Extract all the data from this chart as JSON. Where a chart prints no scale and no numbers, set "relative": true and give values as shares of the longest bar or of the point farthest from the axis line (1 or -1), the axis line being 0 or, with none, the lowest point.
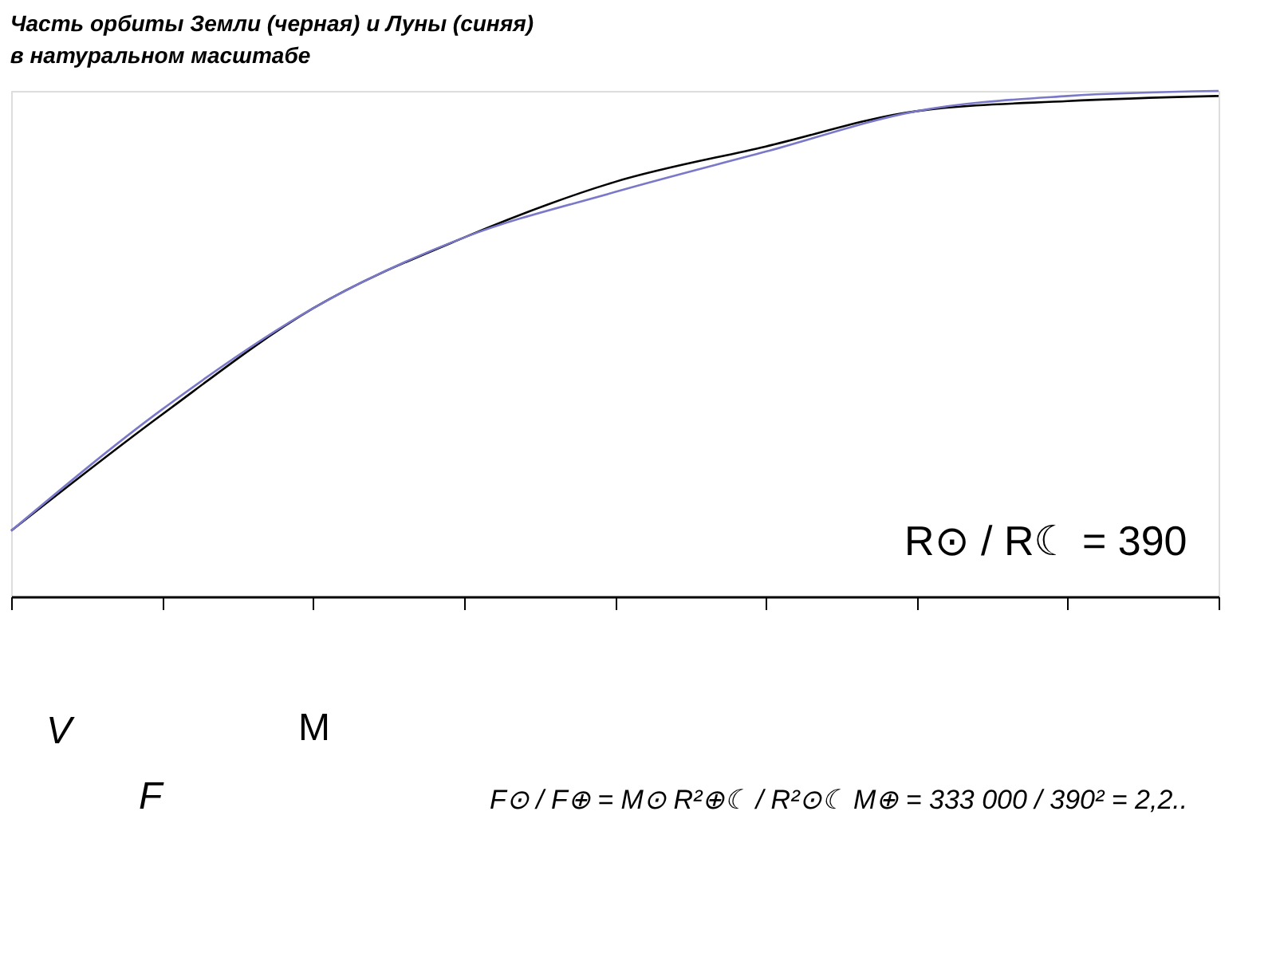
{
  "chart_data": {
    "type": "line",
    "title": "Часть орбиты Земли (черная) и Луны (синяя)",
    "subtitle": "в натуральном масштабе",
    "relative": true,
    "categories": [
      null,
      null,
      null,
      null,
      null,
      null,
      null,
      null,
      null
    ],
    "series": [
      {
        "color": "#000000",
        "values": [
          0.13,
          0.36,
          0.57,
          0.71,
          0.82,
          0.89,
          0.96,
          0.98,
          0.99
        ]
      },
      {
        "color": "#7a78c8",
        "values": [
          0.13,
          0.37,
          0.57,
          0.71,
          0.8,
          0.88,
          0.96,
          0.99,
          1.0
        ]
      }
    ],
    "annotations": [
      "R⊙ / R☾ = 390",
      "V⃗",
      "F⃗",
      "M",
      "F⊙ / F⊕ = M⊙ R²⊕☾ / R²⊙☾ M⊕ = 333 000 / 390² = 2,2.."
    ],
    "legend": false,
    "grid": false,
    "line_style": "solid",
    "marker": "none"
  }
}
